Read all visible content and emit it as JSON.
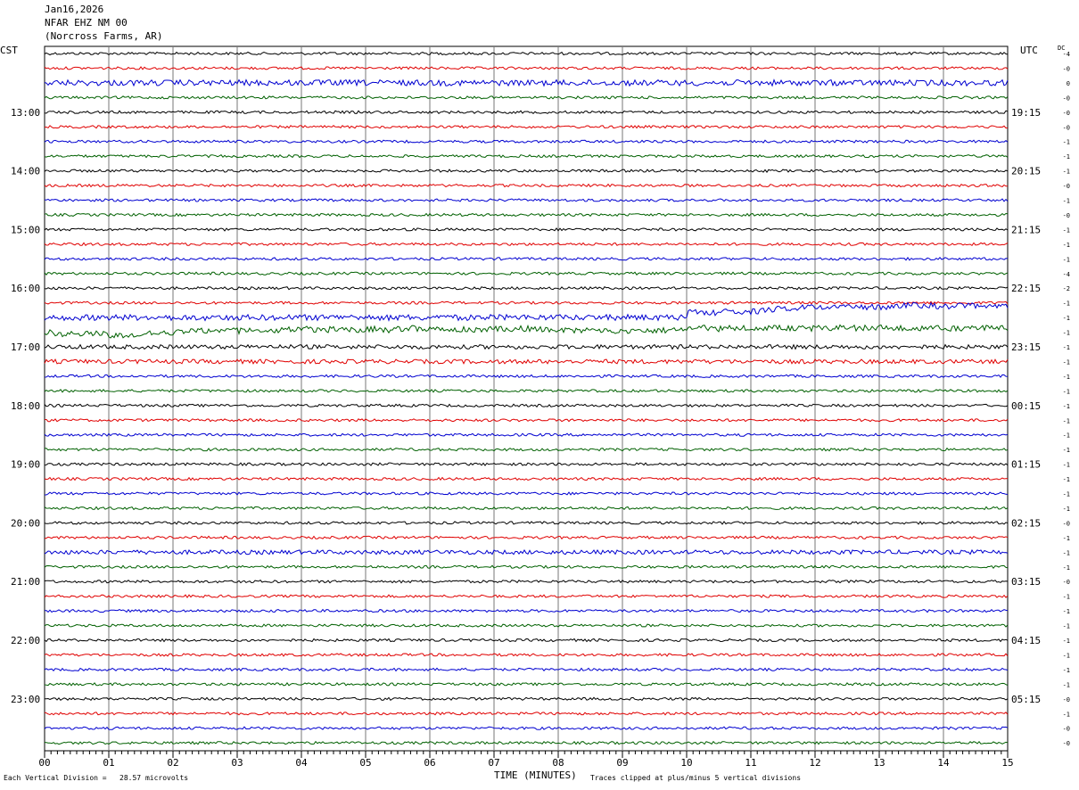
{
  "header": {
    "date": "Jan16,2026",
    "station": "NFAR EHZ NM 00",
    "location": "(Norcross Farms, AR)"
  },
  "left_tz": "CST",
  "right_tz": "UTC",
  "dc_label": "DC",
  "footer": {
    "left": "Each Vertical Division =   28.57 microvolts",
    "right": "Traces clipped at plus/minus 5 vertical divisions",
    "xtitle": "TIME (MINUTES)"
  },
  "colors": {
    "trace": [
      "#000000",
      "#e00000",
      "#0000d0",
      "#006000"
    ],
    "grid": "#777777"
  },
  "chart_data": {
    "type": "line",
    "xlabel": "TIME (MINUTES)",
    "xlim": [
      0,
      15
    ],
    "x_ticks": [
      "00",
      "01",
      "02",
      "03",
      "04",
      "05",
      "06",
      "07",
      "08",
      "09",
      "10",
      "11",
      "12",
      "13",
      "14",
      "15"
    ],
    "left_hour_labels": [
      "13:00",
      "14:00",
      "15:00",
      "16:00",
      "17:00",
      "18:00",
      "19:00",
      "20:00",
      "21:00",
      "22:00",
      "23:00"
    ],
    "right_hour_labels": [
      "19:15",
      "20:15",
      "21:15",
      "22:15",
      "23:15",
      "00:15",
      "01:15",
      "02:15",
      "03:15",
      "04:15",
      "05:15"
    ],
    "trace_count": 48,
    "dc_offsets": [
      "-4",
      "-0",
      "0",
      "-0",
      "-0",
      "-0",
      "-1",
      "-1",
      "-1",
      "-0",
      "-1",
      "-0",
      "-1",
      "-1",
      "-1",
      "-4",
      "-2",
      "-1",
      "-1",
      "-1",
      "-1",
      "-1",
      "-1",
      "-1",
      "-1",
      "-1",
      "-1",
      "-1",
      "-1",
      "-1",
      "-1",
      "-1",
      "-0",
      "-1",
      "-1",
      "-1",
      "-0",
      "-1",
      "-1",
      "-1",
      "-1",
      "-1",
      "-1",
      "-1",
      "-0",
      "-1",
      "-0",
      "-0"
    ],
    "volts_per_division_uV": 28.57,
    "clip_divisions": 5
  }
}
